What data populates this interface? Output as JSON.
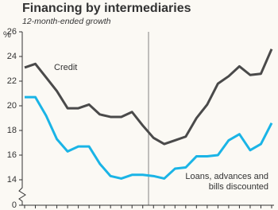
{
  "chart_data": {
    "type": "line",
    "title": "Financing by intermediaries",
    "subtitle": "12-month-ended growth",
    "y_label": "%",
    "categories": [
      null,
      null,
      null,
      null,
      null,
      null,
      null,
      null,
      null,
      null,
      null,
      null,
      null,
      null,
      null,
      null,
      null,
      null,
      null,
      null,
      null,
      null,
      null,
      null
    ],
    "series": [
      {
        "name": "Credit",
        "color": "#4a4a4a",
        "values": [
          23.1,
          23.4,
          22.3,
          21.2,
          19.8,
          19.8,
          20.1,
          19.3,
          19.1,
          19.1,
          19.5,
          18.4,
          17.4,
          16.9,
          17.2,
          17.5,
          19.0,
          20.1,
          21.8,
          22.4,
          23.2,
          22.5,
          22.6,
          24.6
        ]
      },
      {
        "name": "Loans, advances and bills discounted",
        "color": "#1ab4e6",
        "values": [
          20.7,
          20.7,
          19.2,
          17.3,
          16.3,
          16.7,
          16.7,
          15.3,
          14.3,
          14.1,
          14.4,
          14.4,
          14.3,
          14.1,
          14.9,
          15.0,
          15.9,
          15.9,
          16.0,
          17.2,
          17.7,
          16.4,
          16.9,
          18.6
        ]
      }
    ],
    "ylim": [
      14,
      26
    ],
    "yticks": [
      0,
      14,
      16,
      18,
      20,
      22,
      24,
      26
    ],
    "axis_break": true,
    "grid": false
  }
}
